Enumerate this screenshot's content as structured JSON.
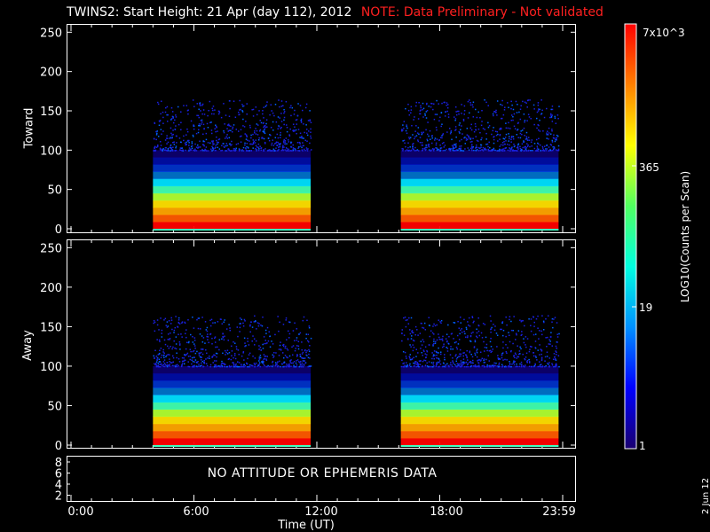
{
  "title": {
    "main": "TWINS2: Start Height: 21 Apr (day 112), 2012",
    "note": "NOTE: Data Preliminary - Not validated"
  },
  "chart_data": [
    {
      "type": "heatmap",
      "name": "toward",
      "ylabel": "Toward",
      "ylim": [
        0,
        256
      ],
      "yticks": [
        0,
        50,
        100,
        150,
        200,
        250
      ],
      "xlim": [
        0,
        24
      ],
      "data_intervals_hours": [
        [
          4.0,
          11.7
        ],
        [
          16.1,
          23.8
        ]
      ]
    },
    {
      "type": "heatmap",
      "name": "away",
      "ylabel": "Away",
      "ylim": [
        0,
        256
      ],
      "yticks": [
        0,
        50,
        100,
        150,
        200,
        250
      ],
      "xlim": [
        0,
        24
      ],
      "data_intervals_hours": [
        [
          4.0,
          11.7
        ],
        [
          16.1,
          23.8
        ]
      ]
    }
  ],
  "aux_panel": {
    "yticks": [
      "8",
      "6",
      "4",
      "2"
    ],
    "message": "NO ATTITUDE OR EPHEMERIS DATA"
  },
  "x_axis": {
    "ticks": [
      "0:00",
      "6:00",
      "12:00",
      "18:00",
      "23:59"
    ],
    "title": "Time (UT)"
  },
  "colorbar": {
    "title": "LOG10(Counts per Scan)",
    "labels": [
      "7x10^3",
      "365",
      "19",
      "1"
    ],
    "colors": [
      "#1a0070",
      "#0000ff",
      "#0090ff",
      "#00ffe0",
      "#50ff60",
      "#ffff00",
      "#ff8000",
      "#ff0000"
    ]
  },
  "date_stamp": "2 Jun 12"
}
